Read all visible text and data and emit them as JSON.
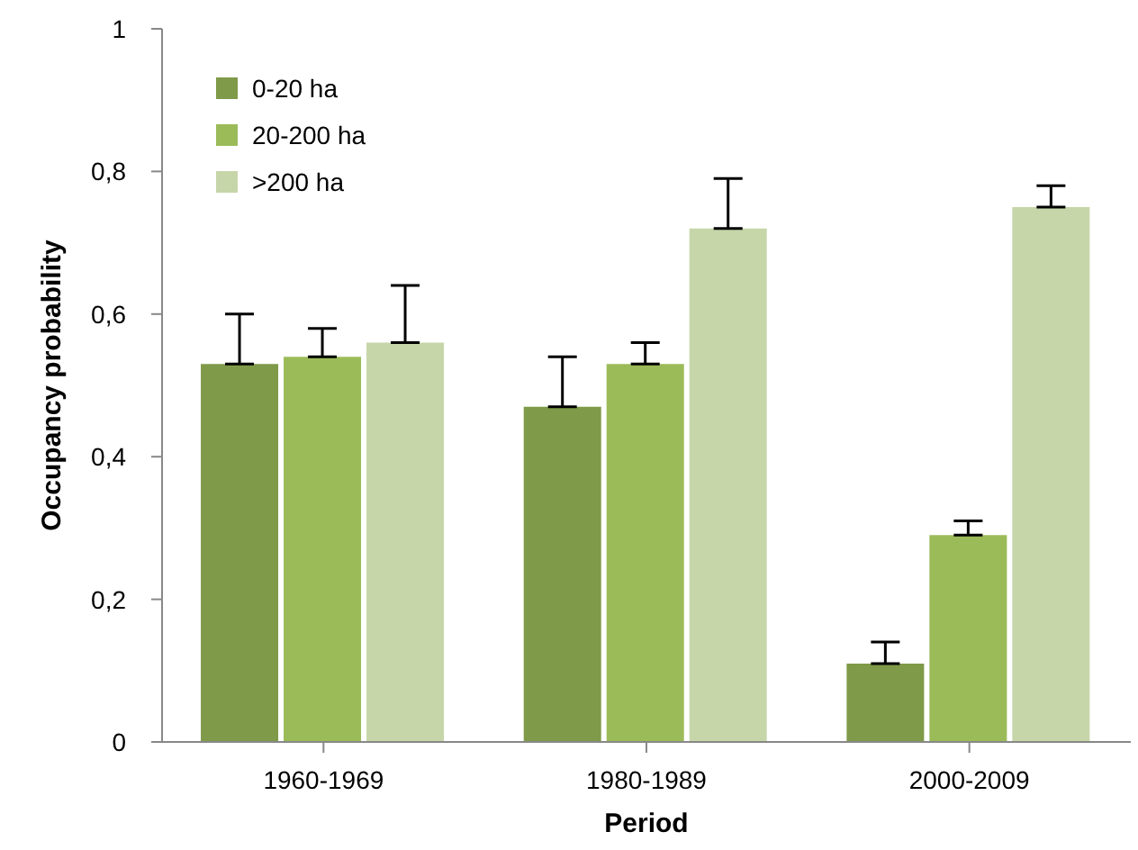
{
  "chart_data": {
    "type": "bar",
    "xlabel": "Period",
    "ylabel": "Occupancy probability",
    "categories": [
      "1960-1969",
      "1980-1989",
      "2000-2009"
    ],
    "series": [
      {
        "name": "0-20 ha",
        "color": "#7f9a48",
        "values": [
          0.53,
          0.47,
          0.11
        ],
        "errors": [
          [
            0.53,
            0.6
          ],
          [
            0.47,
            0.54
          ],
          [
            0.11,
            0.14
          ]
        ]
      },
      {
        "name": "20-200 ha",
        "color": "#9bbb59",
        "values": [
          0.54,
          0.53,
          0.29
        ],
        "errors": [
          [
            0.54,
            0.58
          ],
          [
            0.53,
            0.56
          ],
          [
            0.29,
            0.31
          ]
        ]
      },
      {
        "name": ">200 ha",
        "color": "#c6d6a9",
        "values": [
          0.56,
          0.72,
          0.75
        ],
        "errors": [
          [
            0.56,
            0.64
          ],
          [
            0.72,
            0.79
          ],
          [
            0.75,
            0.78
          ]
        ]
      }
    ],
    "ylim": [
      0,
      1
    ],
    "yticks": [
      0,
      {
        "value": 0.2,
        "label": "0,2"
      },
      {
        "value": 0.4,
        "label": "0,4"
      },
      {
        "value": 0.6,
        "label": "0,6"
      },
      {
        "value": 0.8,
        "label": "0,8"
      },
      1
    ],
    "grid": false,
    "legend": "top left"
  }
}
